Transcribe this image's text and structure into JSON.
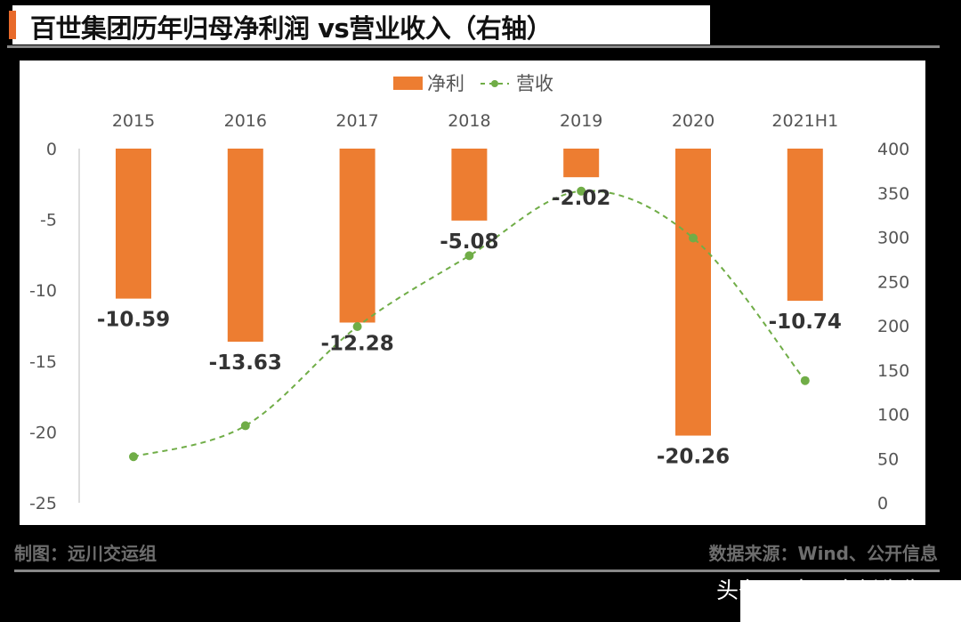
{
  "title": "百世集团历年归母净利润 vs营业收入（右轴）",
  "footer": {
    "left": "制图：远川交运组",
    "right": "数据来源：Wind、公开信息"
  },
  "watermark": "头条 @南国自新先生",
  "colors": {
    "bar": "#ed7d31",
    "line": "#70ad47"
  },
  "chart_data": {
    "type": "bar",
    "categories": [
      "2015",
      "2016",
      "2017",
      "2018",
      "2019",
      "2020",
      "2021H1"
    ],
    "series": [
      {
        "name": "净利",
        "type": "bar",
        "axis": "left",
        "values": [
          -10.59,
          -13.63,
          -12.28,
          -5.08,
          -2.02,
          -20.26,
          -10.74
        ]
      },
      {
        "name": "营收",
        "type": "line",
        "axis": "right",
        "style": "dashed smooth with markers",
        "values": [
          52,
          87,
          199,
          279,
          352,
          299,
          138
        ]
      }
    ],
    "data_labels": [
      "-10.59",
      "-13.63",
      "-12.28",
      "-5.08",
      "-2.02",
      "-20.26",
      "-10.74"
    ],
    "y_left": {
      "range": [
        -25,
        0
      ],
      "ticks": [
        "0",
        "-5",
        "-10",
        "-15",
        "-20",
        "-25"
      ]
    },
    "y_right": {
      "range": [
        0,
        400
      ],
      "ticks": [
        "400",
        "350",
        "300",
        "250",
        "200",
        "150",
        "100",
        "50",
        "0"
      ]
    },
    "x_axis_position": "top",
    "legend": {
      "position": "top",
      "entries": [
        "净利",
        "营收"
      ]
    },
    "grid": false
  }
}
